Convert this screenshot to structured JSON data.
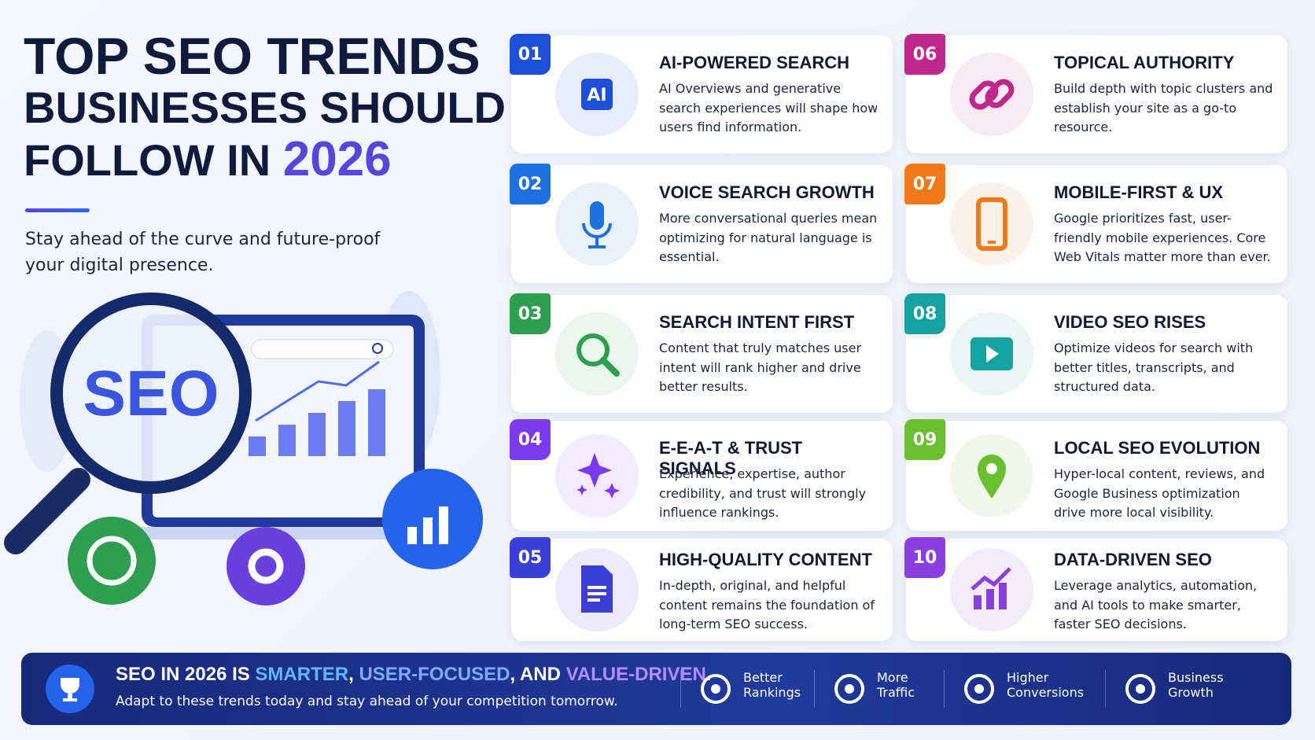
{
  "header": {
    "title_lines": [
      "TOP SEO TRENDS",
      "BUSINESSES SHOULD",
      "FOLLOW IN"
    ],
    "year": "2026",
    "subtitle": "Stay ahead of the curve and future-proof your digital presence."
  },
  "illustration": {
    "label": "SEO"
  },
  "trends": [
    {
      "number": "01",
      "title": "AI-POWERED SEARCH",
      "description": "AI Overviews and generative search experiences will shape how users find information.",
      "color": "#1d4fd8",
      "icon_text": "AI"
    },
    {
      "number": "02",
      "title": "VOICE SEARCH GROWTH",
      "description": "More conversational queries mean optimizing for natural language is essential.",
      "color": "#1e6fe0"
    },
    {
      "number": "03",
      "title": "SEARCH INTENT FIRST",
      "description": "Content that truly matches user intent will rank higher and drive better results.",
      "color": "#2e9e4f"
    },
    {
      "number": "04",
      "title": "E-E-A-T & TRUST SIGNALS",
      "description": "Experience, expertise, author credibility, and trust will strongly influence rankings.",
      "color": "#7c3aed"
    },
    {
      "number": "05",
      "title": "HIGH-QUALITY CONTENT",
      "description": "In-depth, original, and helpful content remains the foundation of long-term SEO success.",
      "color": "#3b3fd6"
    },
    {
      "number": "06",
      "title": "TOPICAL AUTHORITY",
      "description": "Build depth with topic clusters and establish your site as a go-to resource.",
      "color": "#c0278c"
    },
    {
      "number": "07",
      "title": "MOBILE-FIRST & UX",
      "description": "Google prioritizes fast, user-friendly mobile experiences. Core Web Vitals matter more than ever.",
      "color": "#f07a1a"
    },
    {
      "number": "08",
      "title": "VIDEO SEO RISES",
      "description": "Optimize videos for search with better titles, transcripts, and structured data.",
      "color": "#14a3a0"
    },
    {
      "number": "09",
      "title": "LOCAL SEO EVOLUTION",
      "description": "Hyper-local content, reviews, and Google Business optimization drive more local visibility.",
      "color": "#6abf2e"
    },
    {
      "number": "10",
      "title": "DATA-DRIVEN SEO",
      "description": "Leverage analytics, automation, and AI tools to make smarter, faster SEO decisions.",
      "color": "#8b3fe0"
    }
  ],
  "footer": {
    "headline": [
      "SEO IN 2026 IS ",
      "SMARTER",
      ", ",
      "USER-FOCUSED",
      ", AND ",
      "VALUE-DRIVEN",
      "."
    ],
    "tagline": "Adapt to these trends today and stay ahead of your competition tomorrow.",
    "badges": [
      [
        "Better",
        "Rankings"
      ],
      [
        "More",
        "Traffic"
      ],
      [
        "Higher",
        "Conversions"
      ],
      [
        "Business",
        "Growth"
      ]
    ]
  }
}
